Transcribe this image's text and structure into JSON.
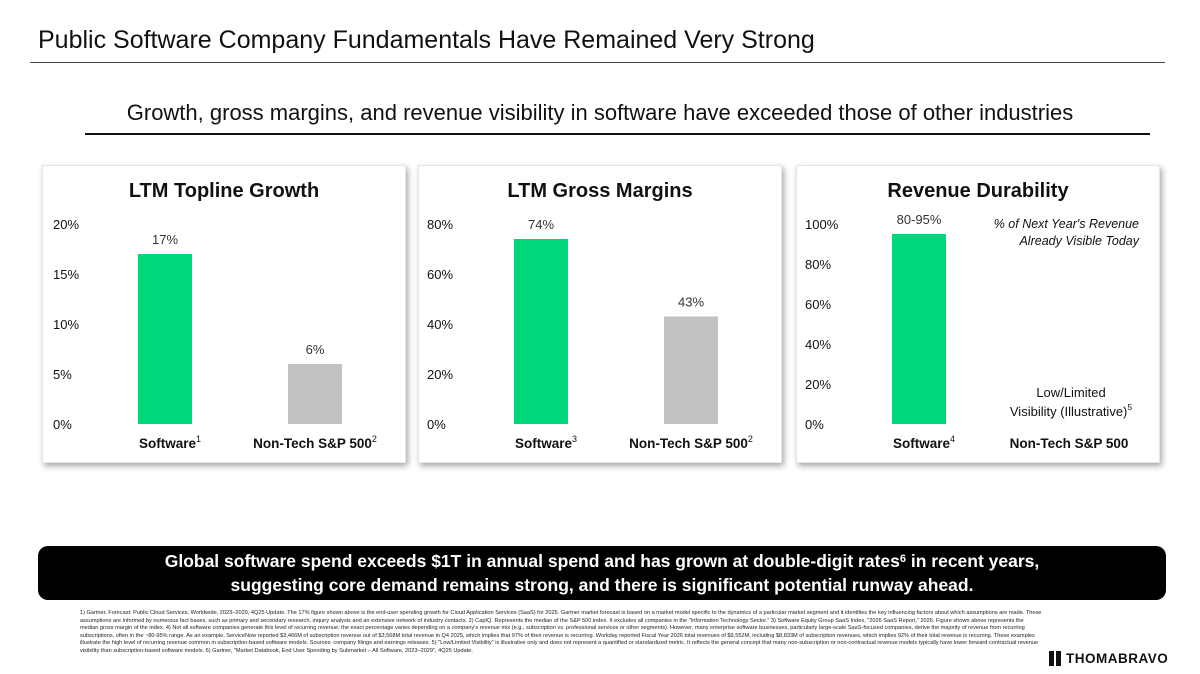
{
  "page": {
    "title": "Public Software Company Fundamentals Have Remained Very Strong",
    "subtitle": "Growth, gross margins, and revenue visibility in software have exceeded those of other industries"
  },
  "banner": {
    "line1_before": "Global software spend exceeds $1T in annual spend and has grown at double-digit rates",
    "line1_sup": "6",
    "line1_after": " in recent years,",
    "line2": "suggesting core demand remains strong, and there is significant potential runway ahead."
  },
  "footnotes": "1) Gartner, Forecast: Public Cloud Services, Worldwide, 2023–2029, 4Q25 Update. The 17% figure shown above is the end-user spending growth for Cloud Application Services (SaaS) for 2025. Gartner market forecast is based on a market model specific to the dynamics of a particular market segment and it identifies the key influencing factors about which assumptions are made. These assumptions are informed by numerous fact bases, such as primary and secondary research, inquiry analysis and an extensive network of industry contacts. 2) CapIQ. Represents the median of the S&P 500 index. It excludes all companies in the \"Information Technology Sector.\" 3) Software Equity Group SaaS Index, \"2026 SaaS Report,\" 2026. Figure shown above represents the median gross margin of the index. 4) Not all software companies generate this level of recurring revenue; the exact percentage varies depending on a company's revenue mix (e.g., subscription vs. professional services or other segments). However, many enterprise software businesses, particularly large-scale SaaS-focused companies, derive the majority of revenue from recurring subscriptions, often in the ~80-95% range. As an example, ServiceNow reported $3,466M of subscription revenue out of $3,568M total revenue in Q4 2025, which implies that 97% of their revenue is recurring. Workday reported Fiscal Year 2026 total revenues of $9,552M, including $8,833M of subscription revenues, which implies 92% of their total revenue is recurring. These examples illustrate the high level of recurring revenue common in subscription-based software models. Sources: company filings and earnings releases. 5) \"Low/Limited Visibility\" is illustrative only and does not represent a quantified or standardized metric. It reflects the general concept that many non-subscription or non-contractual revenue models typically have lower forward contractual revenue visibility than subscription-based software models. 6) Gartner, \"Market Databook, End User Spending by Submarket – All Software, 2023–2029\", 4Q25 Update.",
  "logo": {
    "text": "THOMABRAVO"
  },
  "colors": {
    "software": "#00d67a",
    "non_tech": "#c2c2c2",
    "banner_bg": "#000000"
  },
  "chart_data": [
    {
      "type": "bar",
      "title": "LTM Topline Growth",
      "categories": [
        "Software",
        "Non-Tech S&P 500"
      ],
      "category_sups": [
        "1",
        "2"
      ],
      "values": [
        17,
        6
      ],
      "value_labels": [
        "17%",
        "6%"
      ],
      "ylim": [
        0,
        20
      ],
      "yticks": [
        0,
        5,
        10,
        15,
        20
      ],
      "ytick_labels": [
        "0%",
        "5%",
        "10%",
        "15%",
        "20%"
      ]
    },
    {
      "type": "bar",
      "title": "LTM Gross Margins",
      "categories": [
        "Software",
        "Non-Tech S&P 500"
      ],
      "category_sups": [
        "3",
        "2"
      ],
      "values": [
        74,
        43
      ],
      "value_labels": [
        "74%",
        "43%"
      ],
      "ylim": [
        0,
        80
      ],
      "yticks": [
        0,
        20,
        40,
        60,
        80
      ],
      "ytick_labels": [
        "0%",
        "20%",
        "40%",
        "60%",
        "80%"
      ]
    },
    {
      "type": "bar",
      "title": "Revenue Durability",
      "categories": [
        "Software",
        "Non-Tech S&P 500"
      ],
      "category_sups": [
        "4",
        ""
      ],
      "values": [
        95,
        null
      ],
      "value_labels": [
        "80-95%",
        ""
      ],
      "ylim": [
        0,
        100
      ],
      "yticks": [
        0,
        20,
        40,
        60,
        80,
        100
      ],
      "ytick_labels": [
        "0%",
        "20%",
        "40%",
        "60%",
        "80%",
        "100%"
      ],
      "annotation_lines": [
        "% of Next Year's Revenue",
        "Already Visible Today"
      ],
      "second_label_lines": [
        "Low/Limited",
        "Visibility (Illustrative)"
      ],
      "second_label_sup": "5"
    }
  ]
}
